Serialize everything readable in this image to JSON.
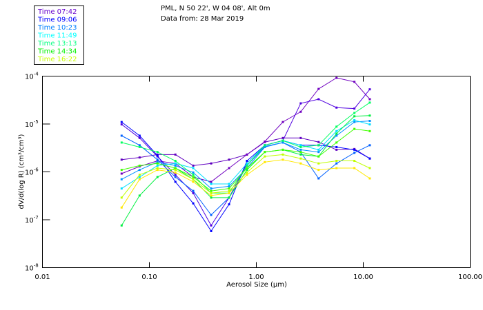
{
  "chart_data": {
    "type": "line",
    "title": "PML, N 50 22', W 04 08', Alt 0m",
    "subtitle": "Data from: 28 Mar 2019",
    "xlabel": "Aerosol Size (μm)",
    "ylabel": "dV/d(log R) (cm³/cm³)",
    "xscale": "log",
    "yscale": "log",
    "xlim": [
      0.01,
      100
    ],
    "ylim": [
      1e-08,
      0.0001
    ],
    "x_tick_labels": [
      {
        "value": 0.01,
        "label": "0.01"
      },
      {
        "value": 0.1,
        "label": "0.10"
      },
      {
        "value": 1,
        "label": "1.00"
      },
      {
        "value": 10,
        "label": "10.00"
      },
      {
        "value": 100,
        "label": "100.00"
      }
    ],
    "y_tick_labels": [
      {
        "value": 0.0001,
        "base": "10",
        "exp": "-4"
      },
      {
        "value": 1e-05,
        "base": "10",
        "exp": "-5"
      },
      {
        "value": 1e-06,
        "base": "10",
        "exp": "-6"
      },
      {
        "value": 1e-07,
        "base": "10",
        "exp": "-7"
      },
      {
        "value": 1e-08,
        "base": "10",
        "exp": "-8"
      }
    ],
    "grid": false,
    "legend_position": "top-left-outside",
    "legend": [
      {
        "label": "Time 07:42",
        "color": "#6600CC"
      },
      {
        "label": "Time 09:06",
        "color": "#0000FF"
      },
      {
        "label": "Time 10:23",
        "color": "#0080FF"
      },
      {
        "label": "Time 11:49",
        "color": "#00FFFF"
      },
      {
        "label": "Time 13:13",
        "color": "#00FF80"
      },
      {
        "label": "Time 14:34",
        "color": "#00F000"
      },
      {
        "label": "Time 16:22",
        "color": "#C8FF00"
      }
    ],
    "x": [
      0.055,
      0.081,
      0.119,
      0.175,
      0.257,
      0.378,
      0.556,
      0.817,
      1.2,
      1.77,
      2.6,
      3.82,
      5.62,
      8.26,
      11.5
    ],
    "series": [
      {
        "color": "#6000C0",
        "values": [
          1.8e-06,
          2e-06,
          2.3e-06,
          2.3e-06,
          1.35e-06,
          1.5e-06,
          1.8e-06,
          2.3e-06,
          4.2e-06,
          5.1e-06,
          5.1e-06,
          4.2e-06,
          2.9e-06,
          3e-06,
          1.9e-06
        ]
      },
      {
        "color": "#7000C0",
        "values": [
          9.2e-07,
          1.3e-06,
          1.7e-06,
          1.5e-06,
          7.8e-07,
          6.2e-07,
          1.2e-06,
          2.3e-06,
          4.3e-06,
          1.1e-05,
          1.8e-05,
          5.4e-05,
          9.2e-05,
          7.6e-05,
          3.3e-05
        ]
      },
      {
        "color": "#5000E0",
        "values": [
          9.8e-06,
          5.1e-06,
          2.1e-06,
          8.7e-07,
          3.6e-07,
          7.6e-08,
          2.9e-07,
          1.5e-06,
          3.6e-06,
          4.5e-06,
          2.7e-05,
          3.3e-05,
          2.2e-05,
          2.1e-05,
          5.3e-05
        ]
      },
      {
        "color": "#0000FF",
        "values": [
          1.1e-05,
          5.7e-06,
          2.2e-06,
          6.2e-07,
          2.2e-07,
          5.8e-08,
          2.1e-07,
          1.7e-06,
          3.6e-06,
          4.5e-06,
          3.6e-06,
          3.6e-06,
          3.3e-06,
          2.9e-06,
          1.9e-06
        ]
      },
      {
        "color": "#0060FF",
        "values": [
          5.7e-06,
          3.6e-06,
          1.8e-06,
          7.8e-07,
          4e-07,
          1.26e-07,
          2.9e-07,
          1.35e-06,
          3.4e-06,
          4.1e-06,
          2.6e-06,
          7.3e-07,
          1.5e-06,
          2.5e-06,
          3.6e-06
        ]
      },
      {
        "color": "#0090FF",
        "values": [
          7e-07,
          1.1e-06,
          1.6e-06,
          1.35e-06,
          9.7e-07,
          4.5e-07,
          5e-07,
          1.2e-06,
          3.3e-06,
          4.1e-06,
          2.9e-06,
          2.6e-06,
          5.7e-06,
          1.1e-05,
          1.16e-05
        ]
      },
      {
        "color": "#00E0FF",
        "values": [
          4.5e-07,
          7.8e-07,
          1.35e-06,
          1.5e-06,
          1.2e-06,
          5.6e-07,
          5.6e-07,
          1.5e-06,
          3.6e-06,
          4.5e-06,
          3.6e-06,
          2.9e-06,
          7.1e-06,
          1.2e-05,
          9.8e-06
        ]
      },
      {
        "color": "#00FF60",
        "values": [
          4.1e-06,
          3.3e-06,
          2.6e-06,
          1.7e-06,
          8.7e-07,
          3.6e-07,
          3.6e-07,
          1.35e-06,
          3.6e-06,
          4.5e-06,
          3.3e-06,
          3.6e-06,
          8.8e-06,
          1.7e-05,
          2.8e-05
        ]
      },
      {
        "color": "#00F040",
        "values": [
          7.6e-08,
          3.2e-07,
          7.8e-07,
          1.2e-06,
          7e-07,
          2.9e-07,
          2.9e-07,
          1.1e-06,
          2.6e-06,
          2.9e-06,
          2.3e-06,
          2.1e-06,
          6.3e-06,
          1.45e-05,
          1.5e-05
        ]
      },
      {
        "color": "#40FF00",
        "values": [
          1.1e-06,
          1.35e-06,
          1.5e-06,
          1.2e-06,
          7.8e-07,
          4e-07,
          4.5e-07,
          1.2e-06,
          2.6e-06,
          2.9e-06,
          2.6e-06,
          2.1e-06,
          4.1e-06,
          7.9e-06,
          7.1e-06
        ]
      },
      {
        "color": "#C0FF00",
        "values": [
          2.9e-07,
          8.7e-07,
          1.2e-06,
          1.1e-06,
          7e-07,
          3.6e-07,
          4e-07,
          9.7e-07,
          2.1e-06,
          2.3e-06,
          1.9e-06,
          1.5e-06,
          1.7e-06,
          1.7e-06,
          1.2e-06
        ]
      },
      {
        "color": "#FFE800",
        "values": [
          1.8e-07,
          7e-07,
          1.1e-06,
          9.7e-07,
          6.2e-07,
          3.2e-07,
          3.6e-07,
          8.7e-07,
          1.6e-06,
          1.8e-06,
          1.5e-06,
          1.1e-06,
          1.2e-06,
          1.2e-06,
          7.3e-07
        ]
      }
    ]
  }
}
